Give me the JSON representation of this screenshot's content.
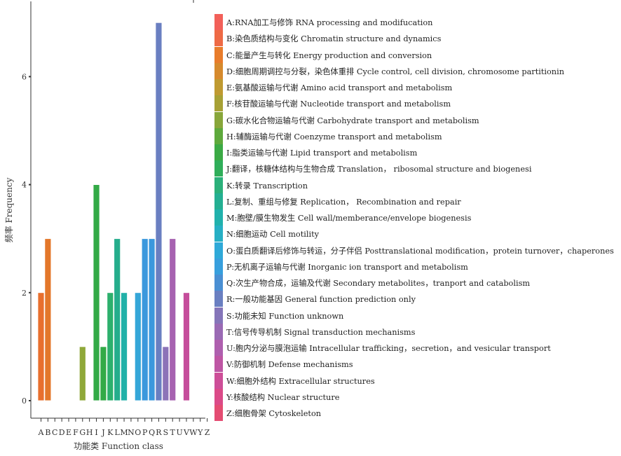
{
  "chart_data": {
    "type": "bar",
    "xlabel": "功能类 Function class",
    "ylabel": "频率 Frequency",
    "ylim": [
      0,
      7.3
    ],
    "yticks": [
      0,
      2,
      4,
      6
    ],
    "grid": false,
    "legend_position": "right",
    "categories": [
      "A",
      "B",
      "C",
      "D",
      "E",
      "F",
      "G",
      "H",
      "I",
      "J",
      "K",
      "L",
      "M",
      "N",
      "O",
      "P",
      "Q",
      "R",
      "S",
      "T",
      "U",
      "V",
      "W",
      "Y",
      "Z"
    ],
    "values": [
      2,
      3,
      0,
      0,
      0,
      0,
      1,
      0,
      4,
      1,
      2,
      3,
      2,
      0,
      2,
      3,
      3,
      7,
      1,
      3,
      0,
      2,
      0,
      0,
      0
    ],
    "colors": [
      "#F8766D",
      "#EF7F49",
      "#E58700",
      "#D69100",
      "#C99800",
      "#B5A100",
      "#A3A500",
      "#7CAE00",
      "#39B600",
      "#00BB4E",
      "#00BF7D",
      "#00C19A",
      "#00BFC4",
      "#00BAE0",
      "#00B0F6",
      "#35A2FF",
      "#619CFF",
      "#9590FF",
      "#B983FF",
      "#D277FF",
      "#E76BF3",
      "#F365E0",
      "#FA62DB",
      "#FF61C3",
      "#FF67A4"
    ],
    "bar_colors": [
      "#E86F2D",
      "#E3772A",
      "#E3772A",
      "#D89030",
      "#C2A232",
      "#ABA136",
      "#8FA83A",
      "#5BAA3B",
      "#33AA47",
      "#33AA47",
      "#2DB06D",
      "#25AD8C",
      "#21B1A8",
      "#2BABC9",
      "#35A6D8",
      "#3B98DD",
      "#3B98DD",
      "#6A7FC1",
      "#8C73B8",
      "#A662B0",
      "#B8579F",
      "#C54D9B",
      "#D64B8E",
      "#E04A7E",
      "#E65064"
    ]
  },
  "legend": {
    "items": [
      {
        "label": "A:RNA加工与修饰 RNA processing and modifucation",
        "color": "#F26059"
      },
      {
        "label": "B:染色质结构与变化 Chromatin structure and dynamics",
        "color": "#EE6A45"
      },
      {
        "label": "C:能量产生与转化 Energy production and conversion",
        "color": "#E87C2B"
      },
      {
        "label": "D:细胞周期调控与分裂，染色体重排 Cycle control, cell division, chromosome partitionin",
        "color": "#D68A2D"
      },
      {
        "label": "E:氨基酸运输与代谢 Amino acid transport and metabolism",
        "color": "#BF9A31"
      },
      {
        "label": "F:核苷酸运输与代谢 Nucleotide transport and metabolism",
        "color": "#A7A135"
      },
      {
        "label": "G:碳水化合物运输与代谢 Carbohydrate transport and metabolism",
        "color": "#88A63A"
      },
      {
        "label": "H:辅酶运输与代谢 Coenzyme transport and metabolism",
        "color": "#5EA93C"
      },
      {
        "label": "I:脂类运输与代谢 Lipid  transport and metabolism",
        "color": "#3BAA45"
      },
      {
        "label": "J:翻译，核糖体结构与生物合成 Translation，  ribosomal structure and biogenesi",
        "color": "#30AE5A"
      },
      {
        "label": "K:转录 Transcription",
        "color": "#2BB07A"
      },
      {
        "label": "L:复制、重组与修复 Replication，  Recombination and repair",
        "color": "#24AF92"
      },
      {
        "label": "M:胞壁/膜生物发生 Cell wall/memberance/envelope biogenesis",
        "color": "#21B1AC"
      },
      {
        "label": "N:细胞运动 Cell motility",
        "color": "#27AFC4"
      },
      {
        "label": "O:蛋白质翻译后修饰与转运，分子伴侣 Posttranslational modification，protein turnover，chaperones",
        "color": "#2FA9D8"
      },
      {
        "label": "P:无机离子运输与代谢 Inorganic ion  transport and metabolism",
        "color": "#389FDD"
      },
      {
        "label": "Q:次生产物合成，运输及代谢 Secondary metabolites，tranport and catabolism",
        "color": "#4A8FD3"
      },
      {
        "label": "R:一般功能基因 General function prediction only",
        "color": "#6A7FC1"
      },
      {
        "label": "S:功能未知 Function unknown",
        "color": "#8575B9"
      },
      {
        "label": "T:信号传导机制 Signal transduction mechanisms",
        "color": "#9A6AB4"
      },
      {
        "label": "U:胞内分泌与膜泡运输 Intracellular trafficking，secretion，and vesicular transport",
        "color": "#AE5FAE"
      },
      {
        "label": "V:防御机制 Defense mechanisms",
        "color": "#BE56A4"
      },
      {
        "label": "W:细胞外结构 Extracellular structures",
        "color": "#CD4E98"
      },
      {
        "label": "Y:核酸结构 Nuclear structure",
        "color": "#DB4A88"
      },
      {
        "label": "Z:细胞骨架 Cytoskeleton",
        "color": "#E44C72"
      }
    ]
  }
}
